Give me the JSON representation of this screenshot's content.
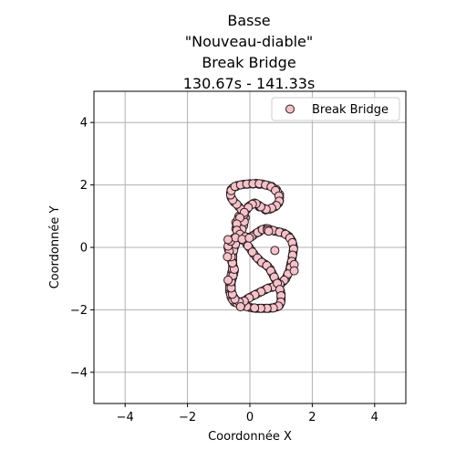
{
  "chart_data": {
    "type": "scatter",
    "title_lines": [
      "Basse",
      "\"Nouveau-diable\"",
      "Break Bridge",
      "130.67s - 141.33s"
    ],
    "xlabel": "Coordonnée X",
    "ylabel": "Coordonnée Y",
    "xlim": [
      -5,
      5
    ],
    "ylim": [
      -5,
      5
    ],
    "xticks": [
      -4,
      -2,
      0,
      2,
      4
    ],
    "yticks": [
      -4,
      -2,
      0,
      2,
      4
    ],
    "xtick_labels": [
      "−4",
      "−2",
      "0",
      "2",
      "4"
    ],
    "ytick_labels": [
      "−4",
      "−2",
      "0",
      "2",
      "4"
    ],
    "grid": true,
    "legend_position": "top-right",
    "series": [
      {
        "name": "Break Bridge",
        "marker_fill": "#f4c2c9",
        "marker_edge": "#2a1a1e",
        "points": [
          [
            -0.6,
            1.85
          ],
          [
            -0.45,
            1.95
          ],
          [
            -0.3,
            2.0
          ],
          [
            -0.1,
            2.02
          ],
          [
            0.1,
            2.03
          ],
          [
            0.3,
            2.02
          ],
          [
            0.5,
            2.0
          ],
          [
            0.7,
            1.95
          ],
          [
            0.85,
            1.85
          ],
          [
            0.95,
            1.7
          ],
          [
            0.95,
            1.5
          ],
          [
            0.85,
            1.35
          ],
          [
            0.7,
            1.25
          ],
          [
            0.5,
            1.2
          ],
          [
            0.3,
            1.3
          ],
          [
            0.1,
            1.4
          ],
          [
            -0.05,
            1.3
          ],
          [
            -0.2,
            1.15
          ],
          [
            -0.35,
            1.0
          ],
          [
            -0.45,
            0.8
          ],
          [
            -0.45,
            0.6
          ],
          [
            -0.35,
            0.45
          ],
          [
            -0.2,
            0.35
          ],
          [
            0.0,
            0.32
          ],
          [
            0.2,
            0.45
          ],
          [
            0.35,
            0.55
          ],
          [
            0.5,
            0.6
          ],
          [
            0.7,
            0.55
          ],
          [
            0.9,
            0.5
          ],
          [
            1.1,
            0.45
          ],
          [
            1.25,
            0.35
          ],
          [
            1.35,
            0.2
          ],
          [
            1.4,
            0.0
          ],
          [
            1.38,
            -0.2
          ],
          [
            1.35,
            -0.4
          ],
          [
            1.3,
            -0.6
          ],
          [
            1.25,
            -0.8
          ],
          [
            1.15,
            -1.0
          ],
          [
            1.0,
            -1.15
          ],
          [
            0.8,
            -1.25
          ],
          [
            0.6,
            -1.3
          ],
          [
            0.4,
            -1.4
          ],
          [
            0.2,
            -1.5
          ],
          [
            0.0,
            -1.6
          ],
          [
            -0.15,
            -1.7
          ],
          [
            -0.3,
            -1.75
          ],
          [
            -0.45,
            -1.7
          ],
          [
            -0.55,
            -1.55
          ],
          [
            -0.6,
            -1.35
          ],
          [
            -0.6,
            -1.15
          ],
          [
            -0.55,
            -0.95
          ],
          [
            -0.5,
            -0.75
          ],
          [
            -0.55,
            -0.55
          ],
          [
            -0.6,
            -0.35
          ],
          [
            -0.65,
            -0.15
          ],
          [
            -0.7,
            0.0
          ],
          [
            -0.65,
            0.15
          ],
          [
            -0.5,
            0.3
          ],
          [
            -0.3,
            0.3
          ],
          [
            -0.1,
            0.1
          ],
          [
            0.05,
            -0.1
          ],
          [
            0.2,
            -0.3
          ],
          [
            0.35,
            -0.45
          ],
          [
            0.5,
            -0.55
          ],
          [
            0.65,
            -0.7
          ],
          [
            0.75,
            -0.9
          ],
          [
            0.85,
            -1.1
          ],
          [
            0.95,
            -1.3
          ],
          [
            1.0,
            -1.5
          ],
          [
            1.0,
            -1.7
          ],
          [
            0.95,
            -1.85
          ],
          [
            0.8,
            -1.92
          ],
          [
            0.6,
            -1.95
          ],
          [
            0.4,
            -1.95
          ],
          [
            0.2,
            -1.95
          ],
          [
            0.0,
            -1.92
          ],
          [
            -0.2,
            -1.88
          ],
          [
            -0.35,
            -1.82
          ],
          [
            -0.5,
            -1.75
          ],
          [
            -0.6,
            -1.6
          ],
          [
            -0.65,
            -1.4
          ],
          [
            -0.65,
            -1.2
          ],
          [
            -0.62,
            -1.0
          ],
          [
            -0.58,
            -0.8
          ],
          [
            -0.55,
            -0.6
          ],
          [
            -0.55,
            -0.4
          ],
          [
            -0.55,
            -0.2
          ],
          [
            -0.5,
            0.0
          ],
          [
            -0.42,
            0.2
          ],
          [
            -0.3,
            0.45
          ],
          [
            -0.2,
            0.7
          ],
          [
            -0.15,
            0.95
          ],
          [
            -0.2,
            1.15
          ],
          [
            -0.35,
            1.3
          ],
          [
            -0.5,
            1.45
          ],
          [
            -0.6,
            1.6
          ],
          [
            -0.62,
            1.75
          ],
          [
            -0.55,
            1.9
          ],
          [
            -0.4,
            1.98
          ],
          [
            -0.2,
            2.02
          ],
          [
            0.0,
            2.04
          ],
          [
            0.2,
            2.05
          ],
          [
            0.4,
            2.03
          ],
          [
            0.6,
            1.98
          ],
          [
            0.75,
            1.9
          ],
          [
            0.88,
            1.78
          ],
          [
            0.95,
            1.6
          ],
          [
            0.92,
            1.42
          ],
          [
            0.8,
            1.3
          ],
          [
            0.62,
            1.22
          ],
          [
            0.45,
            1.25
          ],
          [
            0.28,
            1.35
          ],
          [
            0.15,
            1.42
          ],
          [
            0.02,
            1.35
          ],
          [
            -0.1,
            1.22
          ],
          [
            -0.25,
            1.08
          ],
          [
            -0.38,
            0.9
          ],
          [
            -0.42,
            0.7
          ],
          [
            -0.4,
            0.5
          ],
          [
            -0.28,
            0.38
          ],
          [
            -0.1,
            0.33
          ],
          [
            0.1,
            0.38
          ],
          [
            0.3,
            0.5
          ],
          [
            0.45,
            0.58
          ],
          [
            0.62,
            0.58
          ],
          [
            0.8,
            0.52
          ],
          [
            1.0,
            0.48
          ],
          [
            1.18,
            0.4
          ],
          [
            1.3,
            0.28
          ],
          [
            1.38,
            0.1
          ],
          [
            1.39,
            -0.1
          ],
          [
            1.36,
            -0.3
          ],
          [
            1.32,
            -0.5
          ],
          [
            1.28,
            -0.7
          ],
          [
            1.2,
            -0.9
          ],
          [
            1.08,
            -1.08
          ],
          [
            0.92,
            -1.2
          ],
          [
            0.7,
            -1.28
          ],
          [
            0.5,
            -1.35
          ],
          [
            0.3,
            -1.45
          ],
          [
            0.1,
            -1.55
          ],
          [
            -0.08,
            -1.65
          ],
          [
            -0.22,
            -1.73
          ],
          [
            -0.38,
            -1.73
          ],
          [
            -0.5,
            -1.62
          ],
          [
            -0.58,
            -1.45
          ],
          [
            -0.6,
            -1.25
          ],
          [
            -0.58,
            -1.05
          ],
          [
            -0.52,
            -0.85
          ],
          [
            -0.52,
            -0.65
          ],
          [
            -0.58,
            -0.45
          ],
          [
            -0.62,
            -0.25
          ],
          [
            -0.68,
            -0.08
          ],
          [
            -0.68,
            0.08
          ],
          [
            -0.58,
            0.22
          ],
          [
            -0.4,
            0.32
          ],
          [
            -0.2,
            0.22
          ],
          [
            -0.02,
            0.0
          ],
          [
            0.12,
            -0.2
          ],
          [
            0.28,
            -0.38
          ],
          [
            0.42,
            -0.5
          ],
          [
            0.58,
            -0.62
          ],
          [
            0.7,
            -0.8
          ],
          [
            0.8,
            -1.0
          ],
          [
            0.9,
            -1.2
          ],
          [
            0.98,
            -1.4
          ],
          [
            1.0,
            -1.6
          ],
          [
            0.98,
            -1.78
          ],
          [
            0.88,
            -1.9
          ],
          [
            0.7,
            -1.94
          ],
          [
            0.5,
            -1.95
          ],
          [
            0.3,
            -1.95
          ],
          [
            0.1,
            -1.94
          ],
          [
            -0.1,
            -1.9
          ],
          [
            -0.28,
            -1.85
          ],
          [
            -0.42,
            -1.78
          ],
          [
            -0.55,
            -1.68
          ],
          [
            -0.62,
            -1.5
          ],
          [
            -0.65,
            -1.3
          ],
          [
            -0.63,
            -1.1
          ],
          [
            -0.6,
            -0.9
          ],
          [
            -0.56,
            -0.7
          ],
          [
            -0.55,
            -0.5
          ],
          [
            -0.55,
            -0.3
          ],
          [
            -0.52,
            -0.1
          ],
          [
            -0.46,
            0.1
          ],
          [
            -0.36,
            0.32
          ],
          [
            -0.25,
            0.58
          ],
          [
            -0.18,
            0.82
          ],
          [
            -0.18,
            1.05
          ],
          [
            -0.28,
            1.22
          ],
          [
            -0.42,
            1.38
          ],
          [
            -0.55,
            1.52
          ],
          [
            -0.62,
            1.68
          ],
          [
            -0.6,
            1.82
          ],
          [
            -0.48,
            1.95
          ],
          [
            -0.3,
            2.0
          ],
          [
            -0.1,
            2.03
          ],
          [
            0.1,
            2.04
          ],
          [
            0.3,
            2.04
          ],
          [
            0.5,
            2.0
          ],
          [
            0.68,
            1.94
          ],
          [
            0.82,
            1.82
          ],
          [
            0.93,
            1.65
          ],
          [
            0.94,
            1.48
          ],
          [
            0.85,
            1.34
          ],
          [
            0.7,
            1.26
          ],
          [
            0.52,
            1.22
          ],
          [
            0.35,
            1.3
          ],
          [
            0.2,
            1.4
          ],
          [
            0.08,
            1.38
          ],
          [
            -0.05,
            1.28
          ],
          [
            -0.18,
            1.12
          ],
          [
            -0.32,
            0.95
          ],
          [
            -0.42,
            0.75
          ],
          [
            -0.42,
            0.55
          ],
          [
            -0.32,
            0.42
          ],
          [
            -0.15,
            0.34
          ],
          [
            0.05,
            0.34
          ],
          [
            0.25,
            0.48
          ],
          [
            0.4,
            0.57
          ],
          [
            0.56,
            0.6
          ],
          [
            0.75,
            0.54
          ],
          [
            0.95,
            0.49
          ],
          [
            1.14,
            0.42
          ],
          [
            1.28,
            0.3
          ],
          [
            1.36,
            0.15
          ],
          [
            1.4,
            -0.05
          ],
          [
            1.37,
            -0.25
          ],
          [
            1.34,
            -0.45
          ],
          [
            1.3,
            -0.65
          ],
          [
            1.22,
            -0.85
          ],
          [
            1.1,
            -1.05
          ],
          [
            0.96,
            -1.18
          ],
          [
            0.76,
            -1.26
          ],
          [
            0.56,
            -1.32
          ],
          [
            0.36,
            -1.42
          ],
          [
            0.16,
            -1.52
          ],
          [
            -0.02,
            -1.62
          ],
          [
            -0.18,
            -1.72
          ],
          [
            -0.34,
            -1.75
          ],
          [
            -0.48,
            -1.66
          ],
          [
            -0.56,
            -1.5
          ],
          [
            -0.6,
            -1.3
          ],
          [
            -0.6,
            -1.1
          ],
          [
            -0.54,
            -0.9
          ],
          [
            -0.5,
            -0.7
          ],
          [
            -0.56,
            -0.5
          ],
          [
            -0.6,
            -0.3
          ],
          [
            -0.66,
            -0.12
          ],
          [
            -0.7,
            0.04
          ],
          [
            -0.62,
            0.2
          ],
          [
            -0.46,
            0.31
          ],
          [
            -0.25,
            0.26
          ],
          [
            -0.06,
            0.05
          ],
          [
            0.08,
            -0.15
          ],
          [
            0.24,
            -0.34
          ],
          [
            0.38,
            -0.48
          ],
          [
            0.54,
            -0.58
          ],
          [
            0.67,
            -0.75
          ],
          [
            0.78,
            -0.95
          ],
          [
            0.88,
            -1.15
          ],
          [
            0.96,
            -1.35
          ],
          [
            1.0,
            -1.55
          ],
          [
            0.99,
            -1.75
          ],
          [
            0.92,
            -1.88
          ],
          [
            0.75,
            -1.94
          ],
          [
            0.55,
            -1.95
          ],
          [
            0.35,
            -1.95
          ],
          [
            0.15,
            -1.94
          ],
          [
            0.56,
            0.55
          ],
          [
            0.6,
            0.52
          ],
          [
            -0.02,
            0.3
          ],
          [
            1.42,
            -0.55
          ],
          [
            1.42,
            -0.75
          ],
          [
            -0.7,
            -1.05
          ],
          [
            -0.72,
            -0.3
          ],
          [
            -0.7,
            0.25
          ],
          [
            -0.3,
            -1.9
          ],
          [
            0.8,
            -0.1
          ]
        ]
      }
    ]
  }
}
